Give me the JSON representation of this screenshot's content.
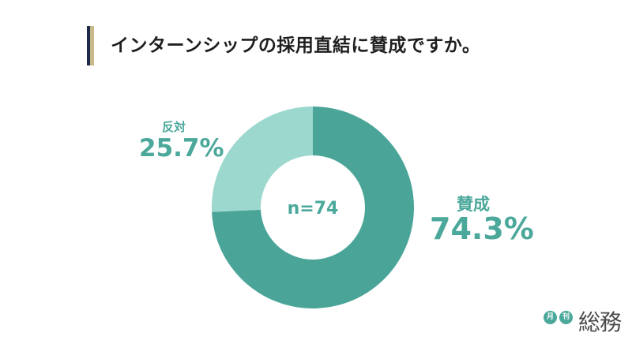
{
  "title": "インターンシップの採用直結に賛成ですか。",
  "chart_data": {
    "type": "pie",
    "categories": [
      "賛成",
      "反対"
    ],
    "values": [
      74.3,
      25.7
    ],
    "value_labels": [
      "74.3%",
      "25.7%"
    ],
    "center_label": "n=74",
    "colors": [
      "#4aa598",
      "#9dd8ce"
    ]
  },
  "logo": {
    "small1": "月",
    "small2": "刊",
    "name": "総務"
  }
}
